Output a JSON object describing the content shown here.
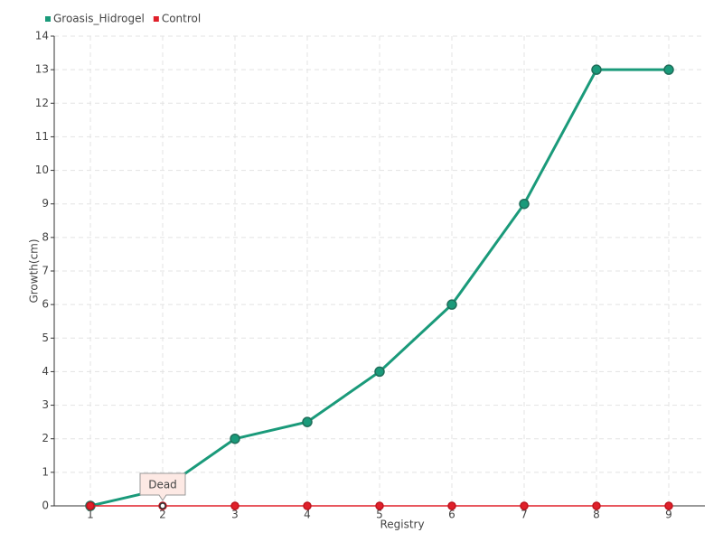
{
  "chart_data": {
    "type": "line",
    "x_label": "Registry",
    "y_label": "Growth(cm)",
    "x": [
      1,
      2,
      3,
      4,
      5,
      6,
      7,
      8,
      9
    ],
    "series": [
      {
        "name": "Groasis_Hidrogel",
        "color": "#1a9a7a",
        "values": [
          0,
          0.5,
          2,
          2.5,
          4,
          6,
          9,
          13,
          13
        ]
      },
      {
        "name": "Control",
        "color": "#e0202a",
        "values": [
          0,
          0,
          0,
          0,
          0,
          0,
          0,
          0,
          0
        ]
      }
    ],
    "annotations": [
      {
        "text": "Dead",
        "x": 2,
        "y": 0
      }
    ],
    "xlim": [
      0.5,
      9.5
    ],
    "xticks": [
      1,
      2,
      3,
      4,
      5,
      6,
      7,
      8,
      9
    ],
    "ylim": [
      0,
      14
    ],
    "yticks": [
      0,
      1,
      2,
      3,
      4,
      5,
      6,
      7,
      8,
      9,
      10,
      11,
      12,
      13,
      14
    ],
    "grid": true
  }
}
